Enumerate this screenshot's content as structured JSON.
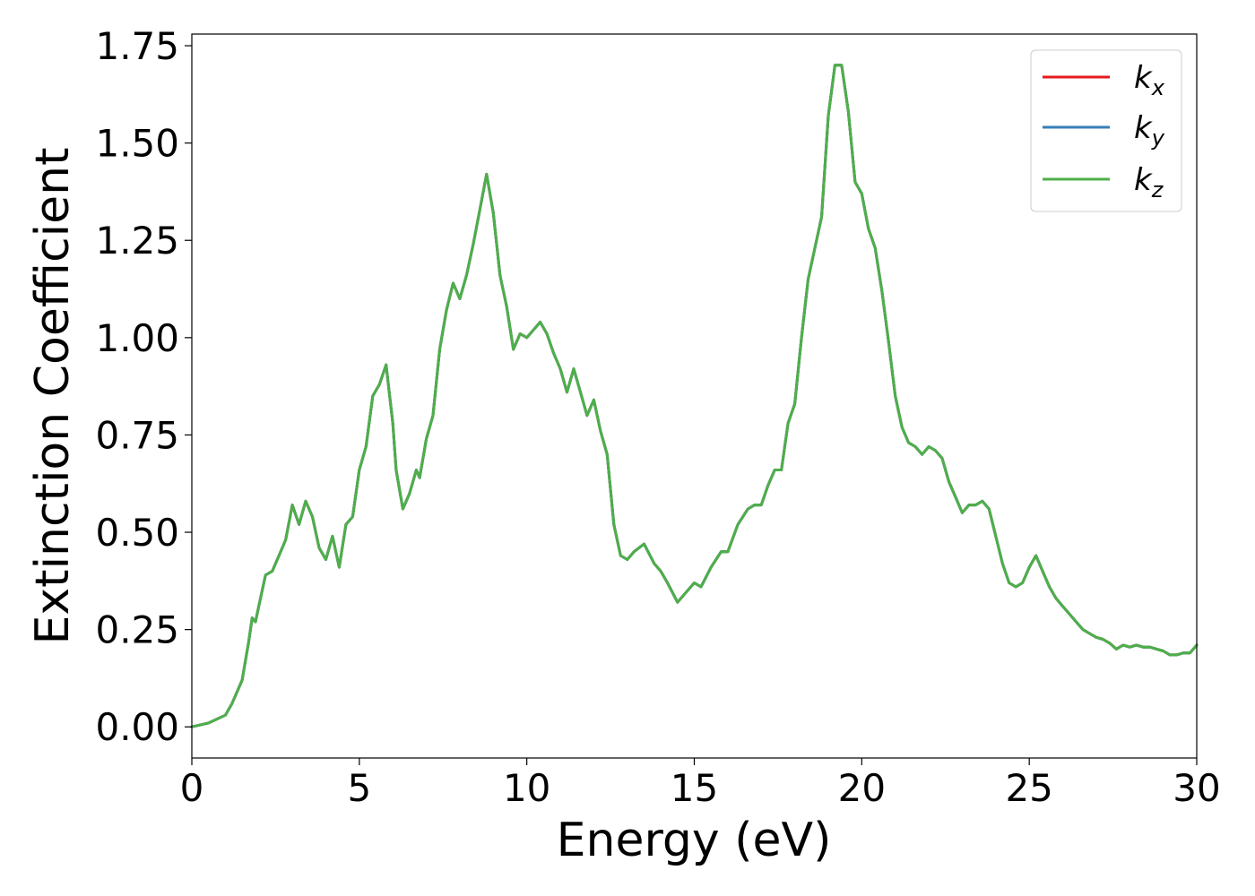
{
  "chart_data": {
    "type": "line",
    "xlabel": "Energy (eV)",
    "ylabel": "Extinction Coefficient",
    "xlim": [
      0,
      30
    ],
    "ylim": [
      -0.08,
      1.78
    ],
    "xticks": [
      0,
      5,
      10,
      15,
      20,
      25,
      30
    ],
    "xtick_labels": [
      "0",
      "5",
      "10",
      "15",
      "20",
      "25",
      "30"
    ],
    "yticks": [
      0.0,
      0.25,
      0.5,
      0.75,
      1.0,
      1.25,
      1.5,
      1.75
    ],
    "ytick_labels": [
      "0.00",
      "0.25",
      "0.50",
      "0.75",
      "1.00",
      "1.25",
      "1.50",
      "1.75"
    ],
    "grid": false,
    "legend_position": "top-right",
    "x": [
      0,
      0.5,
      1.0,
      1.2,
      1.5,
      1.7,
      1.8,
      1.9,
      2.0,
      2.2,
      2.4,
      2.6,
      2.8,
      3.0,
      3.2,
      3.4,
      3.6,
      3.8,
      4.0,
      4.2,
      4.4,
      4.6,
      4.8,
      5.0,
      5.2,
      5.4,
      5.6,
      5.8,
      6.0,
      6.1,
      6.3,
      6.5,
      6.7,
      6.8,
      7.0,
      7.2,
      7.4,
      7.6,
      7.8,
      8.0,
      8.2,
      8.4,
      8.6,
      8.8,
      9.0,
      9.2,
      9.4,
      9.6,
      9.8,
      10.0,
      10.2,
      10.4,
      10.6,
      10.8,
      11.0,
      11.2,
      11.4,
      11.6,
      11.8,
      12.0,
      12.2,
      12.4,
      12.6,
      12.8,
      13.0,
      13.2,
      13.5,
      13.8,
      14.0,
      14.2,
      14.5,
      14.8,
      15.0,
      15.2,
      15.5,
      15.8,
      16.0,
      16.3,
      16.6,
      16.8,
      17.0,
      17.2,
      17.4,
      17.6,
      17.8,
      18.0,
      18.2,
      18.4,
      18.6,
      18.8,
      19.0,
      19.2,
      19.4,
      19.6,
      19.8,
      20.0,
      20.2,
      20.4,
      20.6,
      20.8,
      21.0,
      21.2,
      21.4,
      21.6,
      21.8,
      22.0,
      22.2,
      22.4,
      22.6,
      22.8,
      23.0,
      23.2,
      23.4,
      23.6,
      23.8,
      24.0,
      24.2,
      24.4,
      24.6,
      24.8,
      25.0,
      25.2,
      25.4,
      25.6,
      25.8,
      26.0,
      26.2,
      26.4,
      26.6,
      26.8,
      27.0,
      27.2,
      27.4,
      27.6,
      27.8,
      28.0,
      28.2,
      28.4,
      28.6,
      28.8,
      29.0,
      29.2,
      29.4,
      29.6,
      29.8,
      30.0
    ],
    "series": [
      {
        "name": "k_x",
        "color": "#e41a1c",
        "values": [
          0.0,
          0.01,
          0.03,
          0.06,
          0.12,
          0.22,
          0.28,
          0.27,
          0.31,
          0.39,
          0.4,
          0.44,
          0.48,
          0.57,
          0.52,
          0.58,
          0.54,
          0.46,
          0.43,
          0.49,
          0.41,
          0.52,
          0.54,
          0.66,
          0.72,
          0.85,
          0.88,
          0.93,
          0.78,
          0.66,
          0.56,
          0.6,
          0.66,
          0.64,
          0.74,
          0.8,
          0.97,
          1.07,
          1.14,
          1.1,
          1.16,
          1.24,
          1.33,
          1.42,
          1.32,
          1.16,
          1.08,
          0.97,
          1.01,
          1.0,
          1.02,
          1.04,
          1.01,
          0.96,
          0.92,
          0.86,
          0.92,
          0.86,
          0.8,
          0.84,
          0.76,
          0.7,
          0.52,
          0.44,
          0.43,
          0.45,
          0.47,
          0.42,
          0.4,
          0.37,
          0.32,
          0.35,
          0.37,
          0.36,
          0.41,
          0.45,
          0.45,
          0.52,
          0.56,
          0.57,
          0.57,
          0.62,
          0.66,
          0.66,
          0.78,
          0.83,
          1.0,
          1.15,
          1.23,
          1.31,
          1.57,
          1.7,
          1.7,
          1.58,
          1.4,
          1.37,
          1.28,
          1.23,
          1.12,
          0.99,
          0.85,
          0.77,
          0.73,
          0.72,
          0.7,
          0.72,
          0.71,
          0.69,
          0.63,
          0.59,
          0.55,
          0.57,
          0.57,
          0.58,
          0.56,
          0.49,
          0.42,
          0.37,
          0.36,
          0.37,
          0.41,
          0.44,
          0.4,
          0.36,
          0.33,
          0.31,
          0.29,
          0.27,
          0.25,
          0.24,
          0.23,
          0.225,
          0.215,
          0.2,
          0.21,
          0.205,
          0.21,
          0.205,
          0.205,
          0.2,
          0.195,
          0.185,
          0.185,
          0.19,
          0.19,
          0.21
        ]
      },
      {
        "name": "k_y",
        "color": "#377eb8",
        "values": [
          0.0,
          0.01,
          0.03,
          0.06,
          0.12,
          0.22,
          0.28,
          0.27,
          0.31,
          0.39,
          0.4,
          0.44,
          0.48,
          0.57,
          0.52,
          0.58,
          0.54,
          0.46,
          0.43,
          0.49,
          0.41,
          0.52,
          0.54,
          0.66,
          0.72,
          0.85,
          0.88,
          0.93,
          0.78,
          0.66,
          0.56,
          0.6,
          0.66,
          0.64,
          0.74,
          0.8,
          0.97,
          1.07,
          1.14,
          1.1,
          1.16,
          1.24,
          1.33,
          1.42,
          1.32,
          1.16,
          1.08,
          0.97,
          1.01,
          1.0,
          1.02,
          1.04,
          1.01,
          0.96,
          0.92,
          0.86,
          0.92,
          0.86,
          0.8,
          0.84,
          0.76,
          0.7,
          0.52,
          0.44,
          0.43,
          0.45,
          0.47,
          0.42,
          0.4,
          0.37,
          0.32,
          0.35,
          0.37,
          0.36,
          0.41,
          0.45,
          0.45,
          0.52,
          0.56,
          0.57,
          0.57,
          0.62,
          0.66,
          0.66,
          0.78,
          0.83,
          1.0,
          1.15,
          1.23,
          1.31,
          1.57,
          1.7,
          1.7,
          1.58,
          1.4,
          1.37,
          1.28,
          1.23,
          1.12,
          0.99,
          0.85,
          0.77,
          0.73,
          0.72,
          0.7,
          0.72,
          0.71,
          0.69,
          0.63,
          0.59,
          0.55,
          0.57,
          0.57,
          0.58,
          0.56,
          0.49,
          0.42,
          0.37,
          0.36,
          0.37,
          0.41,
          0.44,
          0.4,
          0.36,
          0.33,
          0.31,
          0.29,
          0.27,
          0.25,
          0.24,
          0.23,
          0.225,
          0.215,
          0.2,
          0.21,
          0.205,
          0.21,
          0.205,
          0.205,
          0.2,
          0.195,
          0.185,
          0.185,
          0.19,
          0.19,
          0.21
        ]
      },
      {
        "name": "k_z",
        "color": "#4daf4a",
        "values": [
          0.0,
          0.01,
          0.03,
          0.06,
          0.12,
          0.22,
          0.28,
          0.27,
          0.31,
          0.39,
          0.4,
          0.44,
          0.48,
          0.57,
          0.52,
          0.58,
          0.54,
          0.46,
          0.43,
          0.49,
          0.41,
          0.52,
          0.54,
          0.66,
          0.72,
          0.85,
          0.88,
          0.93,
          0.78,
          0.66,
          0.56,
          0.6,
          0.66,
          0.64,
          0.74,
          0.8,
          0.97,
          1.07,
          1.14,
          1.1,
          1.16,
          1.24,
          1.33,
          1.42,
          1.32,
          1.16,
          1.08,
          0.97,
          1.01,
          1.0,
          1.02,
          1.04,
          1.01,
          0.96,
          0.92,
          0.86,
          0.92,
          0.86,
          0.8,
          0.84,
          0.76,
          0.7,
          0.52,
          0.44,
          0.43,
          0.45,
          0.47,
          0.42,
          0.4,
          0.37,
          0.32,
          0.35,
          0.37,
          0.36,
          0.41,
          0.45,
          0.45,
          0.52,
          0.56,
          0.57,
          0.57,
          0.62,
          0.66,
          0.66,
          0.78,
          0.83,
          1.0,
          1.15,
          1.23,
          1.31,
          1.57,
          1.7,
          1.7,
          1.58,
          1.4,
          1.37,
          1.28,
          1.23,
          1.12,
          0.99,
          0.85,
          0.77,
          0.73,
          0.72,
          0.7,
          0.72,
          0.71,
          0.69,
          0.63,
          0.59,
          0.55,
          0.57,
          0.57,
          0.58,
          0.56,
          0.49,
          0.42,
          0.37,
          0.36,
          0.37,
          0.41,
          0.44,
          0.4,
          0.36,
          0.33,
          0.31,
          0.29,
          0.27,
          0.25,
          0.24,
          0.23,
          0.225,
          0.215,
          0.2,
          0.21,
          0.205,
          0.21,
          0.205,
          0.205,
          0.2,
          0.195,
          0.185,
          0.185,
          0.19,
          0.19,
          0.21
        ]
      }
    ],
    "legend": [
      {
        "base": "k",
        "sub": "x"
      },
      {
        "base": "k",
        "sub": "y"
      },
      {
        "base": "k",
        "sub": "z"
      }
    ]
  }
}
